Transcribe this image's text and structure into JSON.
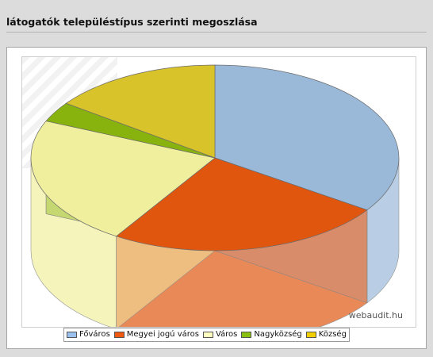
{
  "header": {
    "title": "látogatók településtípus szerinti megoszlása"
  },
  "watermark": "webaudit.hu",
  "chart_data": {
    "type": "pie",
    "categories": [
      "Főváros",
      "Megyei jogú város",
      "Város",
      "Nagyközség",
      "Község"
    ],
    "values": [
      34.5,
      24.5,
      22.5,
      3.5,
      15
    ],
    "unit": "%",
    "colors": [
      "#9ab8d8",
      "#e0560f",
      "#f0ef9e",
      "#88b30e",
      "#d8c32a"
    ],
    "legend_colors": [
      "#9cc0ee",
      "#f05a10",
      "#ffffc0",
      "#88c010",
      "#f0d000"
    ],
    "legend_position": "bottom",
    "three_d": true
  }
}
